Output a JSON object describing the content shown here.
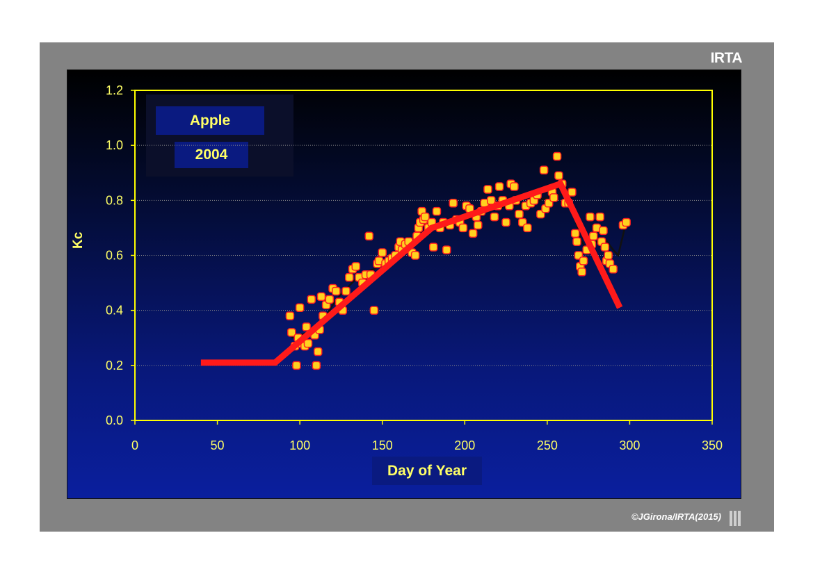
{
  "brand": "IRTA",
  "copyright": "©JGirona/IRTA(2015)",
  "colors": {
    "frame": "#838383",
    "axis": "#ffff00",
    "text": "#ffff66",
    "points_fill": "#ffd21f",
    "points_stroke": "#ff2020",
    "model_line": "#ff1a1a",
    "observed_line": "#111111"
  },
  "chart_data": {
    "type": "scatter",
    "legend": [
      "Apple",
      "2004"
    ],
    "xlabel": "Day of Year",
    "ylabel": "Kc",
    "xlim": [
      0,
      350
    ],
    "ylim": [
      0,
      1.2
    ],
    "xticks": [
      "0",
      "50",
      "100",
      "150",
      "200",
      "250",
      "300",
      "350"
    ],
    "yticks": [
      "0.0",
      "0.2",
      "0.4",
      "0.6",
      "0.8",
      "1.0",
      "1.2"
    ],
    "grid": true,
    "series": [
      {
        "type": "scatter",
        "points": [
          [
            94,
            0.38
          ],
          [
            95,
            0.32
          ],
          [
            97,
            0.27
          ],
          [
            98,
            0.2
          ],
          [
            99,
            0.3
          ],
          [
            100,
            0.41
          ],
          [
            101,
            0.28
          ],
          [
            103,
            0.27
          ],
          [
            104,
            0.34
          ],
          [
            105,
            0.28
          ],
          [
            107,
            0.44
          ],
          [
            109,
            0.31
          ],
          [
            110,
            0.2
          ],
          [
            111,
            0.25
          ],
          [
            112,
            0.33
          ],
          [
            113,
            0.45
          ],
          [
            114,
            0.38
          ],
          [
            116,
            0.42
          ],
          [
            118,
            0.44
          ],
          [
            120,
            0.48
          ],
          [
            122,
            0.47
          ],
          [
            124,
            0.43
          ],
          [
            126,
            0.4
          ],
          [
            128,
            0.47
          ],
          [
            130,
            0.52
          ],
          [
            132,
            0.55
          ],
          [
            134,
            0.56
          ],
          [
            136,
            0.52
          ],
          [
            138,
            0.5
          ],
          [
            140,
            0.53
          ],
          [
            142,
            0.67
          ],
          [
            143,
            0.53
          ],
          [
            145,
            0.4
          ],
          [
            147,
            0.57
          ],
          [
            148,
            0.58
          ],
          [
            150,
            0.61
          ],
          [
            152,
            0.57
          ],
          [
            154,
            0.58
          ],
          [
            156,
            0.59
          ],
          [
            158,
            0.6
          ],
          [
            160,
            0.63
          ],
          [
            161,
            0.65
          ],
          [
            162,
            0.62
          ],
          [
            164,
            0.64
          ],
          [
            166,
            0.65
          ],
          [
            168,
            0.61
          ],
          [
            170,
            0.6
          ],
          [
            171,
            0.67
          ],
          [
            172,
            0.7
          ],
          [
            173,
            0.72
          ],
          [
            174,
            0.76
          ],
          [
            175,
            0.73
          ],
          [
            176,
            0.74
          ],
          [
            178,
            0.7
          ],
          [
            180,
            0.72
          ],
          [
            181,
            0.63
          ],
          [
            183,
            0.76
          ],
          [
            185,
            0.7
          ],
          [
            187,
            0.72
          ],
          [
            189,
            0.62
          ],
          [
            191,
            0.71
          ],
          [
            193,
            0.79
          ],
          [
            195,
            0.73
          ],
          [
            197,
            0.72
          ],
          [
            199,
            0.7
          ],
          [
            201,
            0.78
          ],
          [
            203,
            0.77
          ],
          [
            205,
            0.68
          ],
          [
            207,
            0.74
          ],
          [
            208,
            0.71
          ],
          [
            210,
            0.76
          ],
          [
            212,
            0.79
          ],
          [
            214,
            0.84
          ],
          [
            216,
            0.8
          ],
          [
            218,
            0.74
          ],
          [
            220,
            0.78
          ],
          [
            221,
            0.85
          ],
          [
            223,
            0.8
          ],
          [
            225,
            0.72
          ],
          [
            227,
            0.78
          ],
          [
            228,
            0.86
          ],
          [
            230,
            0.85
          ],
          [
            231,
            0.8
          ],
          [
            233,
            0.75
          ],
          [
            235,
            0.72
          ],
          [
            237,
            0.78
          ],
          [
            238,
            0.7
          ],
          [
            240,
            0.79
          ],
          [
            242,
            0.8
          ],
          [
            244,
            0.82
          ],
          [
            246,
            0.75
          ],
          [
            248,
            0.91
          ],
          [
            249,
            0.77
          ],
          [
            251,
            0.79
          ],
          [
            253,
            0.83
          ],
          [
            254,
            0.81
          ],
          [
            256,
            0.96
          ],
          [
            257,
            0.89
          ],
          [
            259,
            0.86
          ],
          [
            261,
            0.79
          ],
          [
            263,
            0.79
          ],
          [
            265,
            0.83
          ],
          [
            267,
            0.68
          ],
          [
            268,
            0.65
          ],
          [
            269,
            0.6
          ],
          [
            270,
            0.56
          ],
          [
            271,
            0.54
          ],
          [
            272,
            0.58
          ],
          [
            274,
            0.62
          ],
          [
            276,
            0.74
          ],
          [
            277,
            0.64
          ],
          [
            278,
            0.67
          ],
          [
            280,
            0.7
          ],
          [
            282,
            0.74
          ],
          [
            283,
            0.65
          ],
          [
            284,
            0.69
          ],
          [
            285,
            0.63
          ],
          [
            286,
            0.58
          ],
          [
            287,
            0.6
          ],
          [
            288,
            0.57
          ],
          [
            290,
            0.55
          ],
          [
            296,
            0.71
          ],
          [
            298,
            0.72
          ]
        ]
      },
      {
        "type": "line",
        "points": [
          [
            95,
            0.3
          ],
          [
            100,
            0.31
          ],
          [
            105,
            0.32
          ],
          [
            110,
            0.34
          ],
          [
            115,
            0.37
          ],
          [
            120,
            0.42
          ],
          [
            125,
            0.46
          ],
          [
            130,
            0.49
          ],
          [
            135,
            0.52
          ],
          [
            140,
            0.54
          ],
          [
            145,
            0.55
          ],
          [
            150,
            0.57
          ],
          [
            155,
            0.58
          ],
          [
            160,
            0.6
          ],
          [
            165,
            0.62
          ],
          [
            170,
            0.64
          ],
          [
            175,
            0.68
          ],
          [
            180,
            0.71
          ],
          [
            185,
            0.7
          ],
          [
            190,
            0.7
          ],
          [
            195,
            0.71
          ],
          [
            200,
            0.73
          ],
          [
            205,
            0.74
          ],
          [
            210,
            0.75
          ],
          [
            215,
            0.77
          ],
          [
            220,
            0.77
          ],
          [
            225,
            0.78
          ],
          [
            230,
            0.78
          ],
          [
            235,
            0.79
          ],
          [
            240,
            0.78
          ],
          [
            245,
            0.8
          ],
          [
            250,
            0.81
          ],
          [
            255,
            0.82
          ],
          [
            260,
            0.82
          ],
          [
            265,
            0.78
          ],
          [
            270,
            0.66
          ],
          [
            275,
            0.61
          ],
          [
            280,
            0.65
          ],
          [
            285,
            0.66
          ],
          [
            290,
            0.62
          ],
          [
            293,
            0.6
          ],
          [
            297,
            0.7
          ]
        ]
      },
      {
        "type": "line",
        "points": [
          [
            40,
            0.21
          ],
          [
            85,
            0.21
          ],
          [
            180,
            0.7
          ],
          [
            258,
            0.86
          ],
          [
            294,
            0.41
          ]
        ]
      }
    ]
  }
}
